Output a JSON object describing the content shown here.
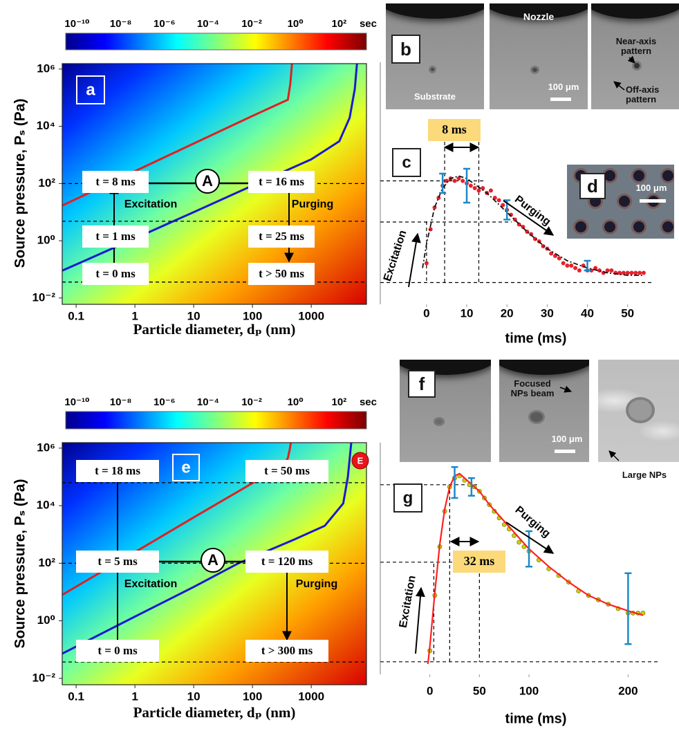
{
  "chart_data": [
    {
      "type": "contour",
      "label": "a",
      "log_x": true,
      "log_y": true,
      "xlim": [
        0.058,
        8700
      ],
      "ylim": [
        0.006,
        1550000
      ],
      "xticks": [
        0.1,
        1,
        10,
        100,
        1000
      ],
      "yticks": [
        {
          "value": 0.01,
          "label": "10⁻²"
        },
        {
          "value": 1,
          "label": "10⁰"
        },
        {
          "value": 100,
          "label": "10²"
        },
        {
          "value": 10000,
          "label": "10⁴"
        },
        {
          "value": 1000000,
          "label": "10⁶"
        }
      ],
      "xlabel": "Particle diameter, dₚ (nm)",
      "ylabel": "Source pressure, Pₛ (Pa)",
      "colorbar": {
        "clim": [
          3e-11,
          1800
        ],
        "unit": "sec",
        "ticks": [
          {
            "value": 1e-10,
            "label": "10⁻¹⁰"
          },
          {
            "value": 1e-08,
            "label": "10⁻⁸"
          },
          {
            "value": 1e-06,
            "label": "10⁻⁶"
          },
          {
            "value": 0.0001,
            "label": "10⁻⁴"
          },
          {
            "value": 0.01,
            "label": "10⁻²"
          },
          {
            "value": 1,
            "label": "10⁰"
          },
          {
            "value": 100,
            "label": "10²"
          }
        ]
      },
      "series": [
        {
          "color": "#e02020",
          "x": [
            0.058,
            1,
            10,
            100,
            300,
            400,
            440,
            470
          ],
          "values": [
            17,
            270,
            2500,
            23000,
            65000,
            85000,
            300000,
            1550000
          ]
        },
        {
          "color": "#1a1ad0",
          "x": [
            0.058,
            1,
            10,
            120,
            1000,
            3000,
            4500,
            5500,
            6000
          ],
          "values": [
            0.09,
            1.2,
            10,
            100,
            700,
            3000,
            20000,
            200000,
            1550000
          ]
        }
      ],
      "reference_lines": [
        100,
        4.8,
        0.036
      ],
      "annotations": [
        "t = 8 ms",
        "t = 16 ms",
        "Excitation",
        "Purging",
        "t = 1 ms",
        "t = 25 ms",
        "t = 0 ms",
        "t > 50 ms",
        "A"
      ]
    },
    {
      "type": "scatter",
      "label": "c",
      "xlim": [
        -11.5,
        59
      ],
      "ylim": [
        0,
        1
      ],
      "xticks": [
        0,
        10,
        20,
        30,
        40,
        50
      ],
      "xlabel": "time (ms)",
      "series": [
        {
          "style": "markers",
          "color": "#e8202a",
          "x": [
            0,
            1,
            2,
            3,
            4,
            5,
            6,
            7,
            8,
            9,
            10,
            11,
            12,
            13,
            14,
            15,
            16,
            17,
            18,
            19,
            20,
            21,
            22,
            23,
            24,
            25,
            26,
            27,
            28,
            29,
            30,
            31,
            32,
            33,
            34,
            35,
            36,
            37,
            38,
            39,
            40,
            41,
            42,
            43,
            44,
            45,
            46,
            47,
            48,
            49,
            50,
            51,
            52,
            53,
            54
          ],
          "values": [
            0.17,
            0.31,
            0.4,
            0.44,
            0.49,
            0.51,
            0.52,
            0.51,
            0.52,
            0.51,
            0.5,
            0.49,
            0.48,
            0.47,
            0.48,
            0.46,
            0.47,
            0.44,
            0.43,
            0.41,
            0.39,
            0.37,
            0.35,
            0.33,
            0.32,
            0.3,
            0.29,
            0.27,
            0.26,
            0.24,
            0.23,
            0.21,
            0.2,
            0.19,
            0.17,
            0.16,
            0.16,
            0.15,
            0.14,
            0.16,
            0.14,
            0.14,
            0.15,
            0.14,
            0.13,
            0.14,
            0.14,
            0.13,
            0.13,
            0.13,
            0.13,
            0.13,
            0.13,
            0.13,
            0.13
          ]
        },
        {
          "style": "dashdot",
          "color": "#111111",
          "x": [
            -1,
            0,
            2,
            4,
            6,
            8,
            10,
            15,
            20,
            25,
            30,
            35,
            40,
            45,
            50,
            54
          ],
          "values": [
            0.15,
            0.25,
            0.4,
            0.48,
            0.52,
            0.53,
            0.52,
            0.46,
            0.38,
            0.3,
            0.23,
            0.18,
            0.15,
            0.13,
            0.12,
            0.12
          ]
        }
      ],
      "error_bars": {
        "color": "#1e88c8",
        "x": [
          4,
          10,
          20,
          40
        ],
        "values": [
          0.5,
          0.49,
          0.39,
          0.16
        ],
        "errors": [
          0.04,
          0.07,
          0.04,
          0.02
        ]
      },
      "reference_lines": {
        "y": [
          0.51,
          0.34,
          0.09
        ],
        "x": [
          0,
          4.5,
          13
        ]
      },
      "annotations": [
        "8 ms",
        "Excitation",
        "Purging"
      ]
    },
    {
      "type": "contour",
      "label": "e",
      "log_x": true,
      "log_y": true,
      "xlim": [
        0.058,
        8700
      ],
      "ylim": [
        0.006,
        1550000
      ],
      "xticks": [
        0.1,
        1,
        10,
        100,
        1000
      ],
      "yticks": [
        {
          "value": 0.01,
          "label": "10⁻²"
        },
        {
          "value": 1,
          "label": "10⁰"
        },
        {
          "value": 100,
          "label": "10²"
        },
        {
          "value": 10000,
          "label": "10⁴"
        },
        {
          "value": 1000000,
          "label": "10⁶"
        }
      ],
      "xlabel": "Particle diameter, dₚ (nm)",
      "ylabel": "Source pressure, Pₛ (Pa)",
      "colorbar": {
        "clim": [
          3e-11,
          1800
        ],
        "unit": "sec",
        "ticks": [
          {
            "value": 1e-10,
            "label": "10⁻¹⁰"
          },
          {
            "value": 1e-08,
            "label": "10⁻⁸"
          },
          {
            "value": 1e-06,
            "label": "10⁻⁶"
          },
          {
            "value": 0.0001,
            "label": "10⁻⁴"
          },
          {
            "value": 0.01,
            "label": "10⁻²"
          },
          {
            "value": 1,
            "label": "10⁰"
          },
          {
            "value": 100,
            "label": "10²"
          }
        ]
      },
      "series": [
        {
          "color": "#e02020",
          "x": [
            0.058,
            1,
            10,
            100,
            337,
            400,
            430,
            450
          ],
          "values": [
            8,
            243,
            3900,
            61000,
            260000,
            450000,
            900000,
            1550000
          ]
        },
        {
          "color": "#1a1ad0",
          "x": [
            0.058,
            1,
            10,
            58,
            500,
            1700,
            3500,
            4200,
            4800
          ],
          "values": [
            0.072,
            1.4,
            15,
            100,
            650,
            2000,
            12000,
            100000,
            1550000
          ]
        }
      ],
      "reference_lines": [
        63000,
        100,
        0.037
      ],
      "annotations": [
        "t = 18 ms",
        "t = 50 ms",
        "t = 5 ms",
        "t = 120 ms",
        "Excitation",
        "Purging",
        "t = 0 ms",
        "t > 300 ms",
        "A"
      ]
    },
    {
      "type": "scatter",
      "label": "g",
      "xlim": [
        -50,
        236
      ],
      "ylim": [
        0,
        1
      ],
      "xticks": [
        0,
        50,
        100,
        200
      ],
      "xlabel": "time (ms)",
      "series": [
        {
          "style": "markers",
          "color": "#c8d400",
          "x": [
            0,
            5,
            10,
            15,
            20,
            25,
            30,
            35,
            40,
            45,
            50,
            55,
            60,
            65,
            70,
            75,
            80,
            85,
            90,
            95,
            100,
            110,
            120,
            130,
            140,
            150,
            160,
            170,
            180,
            190,
            200,
            205,
            210,
            215
          ],
          "values": [
            0.06,
            0.31,
            0.53,
            0.69,
            0.8,
            0.84,
            0.85,
            0.83,
            0.81,
            0.8,
            0.78,
            0.75,
            0.72,
            0.69,
            0.66,
            0.63,
            0.61,
            0.58,
            0.55,
            0.53,
            0.51,
            0.47,
            0.43,
            0.4,
            0.37,
            0.33,
            0.31,
            0.29,
            0.27,
            0.25,
            0.23,
            0.23,
            0.23,
            0.23
          ]
        },
        {
          "style": "line",
          "color": "#ff2020",
          "x": [
            -2,
            0,
            5,
            10,
            15,
            20,
            25,
            30,
            40,
            50,
            60,
            80,
            100,
            120,
            140,
            160,
            180,
            200,
            215
          ],
          "values": [
            0,
            0.08,
            0.32,
            0.54,
            0.7,
            0.8,
            0.85,
            0.86,
            0.82,
            0.78,
            0.72,
            0.62,
            0.52,
            0.44,
            0.37,
            0.31,
            0.27,
            0.24,
            0.22
          ]
        }
      ],
      "error_bars": {
        "color": "#1e88c8",
        "x": [
          25,
          42,
          100,
          200
        ],
        "values": [
          0.82,
          0.8,
          0.52,
          0.25
        ],
        "errors": [
          0.07,
          0.04,
          0.08,
          0.16
        ]
      },
      "reference_lines": {
        "y": [
          0.81,
          0.46,
          0.01
        ],
        "x": [
          4,
          20,
          50
        ]
      },
      "annotations": [
        "32 ms",
        "Excitation",
        "Purging"
      ]
    }
  ],
  "photos": [
    {
      "label": "b",
      "texts": [
        "Substrate",
        "Nozzle",
        "100 μm",
        "Near-axis pattern",
        "Off-axis pattern"
      ]
    },
    {
      "label": "d",
      "texts": [
        "100 μm"
      ]
    },
    {
      "label": "f",
      "texts": [
        "Focused NPs beam",
        "100 μm",
        "Large NPs"
      ]
    }
  ],
  "badge": "E"
}
